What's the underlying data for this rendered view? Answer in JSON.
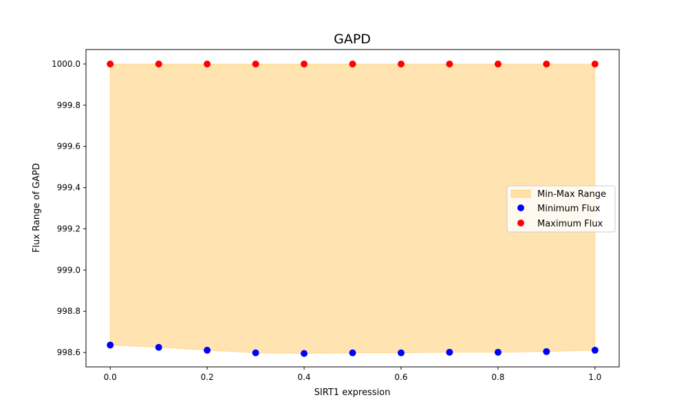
{
  "chart_data": {
    "type": "scatter",
    "title": "GAPD",
    "xlabel": "SIRT1 expression",
    "ylabel": "Flux Range of GAPD",
    "xlim": [
      -0.05,
      1.05
    ],
    "ylim": [
      998.53,
      1000.07
    ],
    "xticks": [
      0.0,
      0.2,
      0.4,
      0.6,
      0.8,
      1.0
    ],
    "xtick_labels": [
      "0.0",
      "0.2",
      "0.4",
      "0.6",
      "0.8",
      "1.0"
    ],
    "yticks": [
      998.6,
      998.8,
      999.0,
      999.2,
      999.4,
      999.6,
      999.8,
      1000.0
    ],
    "ytick_labels": [
      "998.6",
      "998.8",
      "999.0",
      "999.2",
      "999.4",
      "999.6",
      "999.8",
      "1000.0"
    ],
    "grid": false,
    "legend_position": "center-right",
    "x": [
      0.0,
      0.1,
      0.2,
      0.3,
      0.4,
      0.5,
      0.6,
      0.7,
      0.8,
      0.9,
      1.0
    ],
    "fill": {
      "name": "Min-Max Range",
      "color": "#ffa500",
      "opacity": 0.3
    },
    "series": [
      {
        "name": "Minimum Flux",
        "color": "#0000ff",
        "values": [
          998.636,
          998.625,
          998.611,
          998.598,
          998.595,
          998.598,
          998.598,
          998.601,
          998.601,
          998.604,
          998.611
        ]
      },
      {
        "name": "Maximum Flux",
        "color": "#ff0000",
        "values": [
          1000.0,
          1000.0,
          1000.0,
          1000.0,
          1000.0,
          1000.0,
          1000.0,
          1000.0,
          1000.0,
          1000.0,
          1000.0
        ]
      }
    ]
  }
}
